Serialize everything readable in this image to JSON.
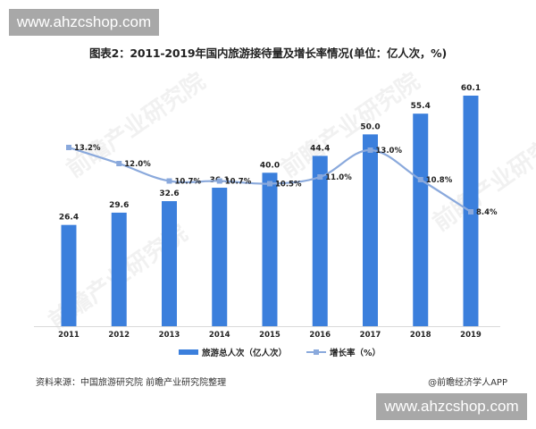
{
  "watermarks": {
    "top": "www.ahzcshop.com",
    "bottom": "www.ahzcshop.com"
  },
  "title": "图表2：2011-2019年国内旅游接待量及增长率情况(单位：亿人次，%)",
  "background_watermark": "前瞻产业研究院",
  "legend": {
    "bar": "旅游总人次（亿人次）",
    "line": "增长率（%）"
  },
  "footer": {
    "source": "资料来源：中国旅游研究院  前瞻产业研究院整理",
    "credit": "@前瞻经济学人APP"
  },
  "colors": {
    "bar": "#3b7fdc",
    "line": "#8aa9dc",
    "axis": "#d9d9d9"
  },
  "chart_data": {
    "type": "bar+line",
    "title": "图表2：2011-2019年国内旅游接待量及增长率情况(单位：亿人次，%)",
    "categories": [
      "2011",
      "2012",
      "2013",
      "2014",
      "2015",
      "2016",
      "2017",
      "2018",
      "2019"
    ],
    "series": [
      {
        "name": "旅游总人次（亿人次）",
        "type": "bar",
        "values": [
          26.4,
          29.6,
          32.6,
          36.1,
          40.0,
          44.4,
          50.0,
          55.4,
          60.1
        ],
        "labels": [
          "26.4",
          "29.6",
          "32.6",
          "36.1",
          "40.0",
          "44.4",
          "50.0",
          "55.4",
          "60.1"
        ]
      },
      {
        "name": "增长率（%）",
        "type": "line",
        "values": [
          13.2,
          12.0,
          10.7,
          10.7,
          10.5,
          11.0,
          13.0,
          10.8,
          8.4
        ],
        "labels": [
          "13.2%",
          "12.0%",
          "10.7%",
          "10.7%",
          "10.5%",
          "11.0%",
          "13.0%",
          "10.8%",
          "8.4%"
        ]
      }
    ],
    "xlabel": "",
    "ylabel": "",
    "grid": false,
    "legend_position": "bottom"
  }
}
